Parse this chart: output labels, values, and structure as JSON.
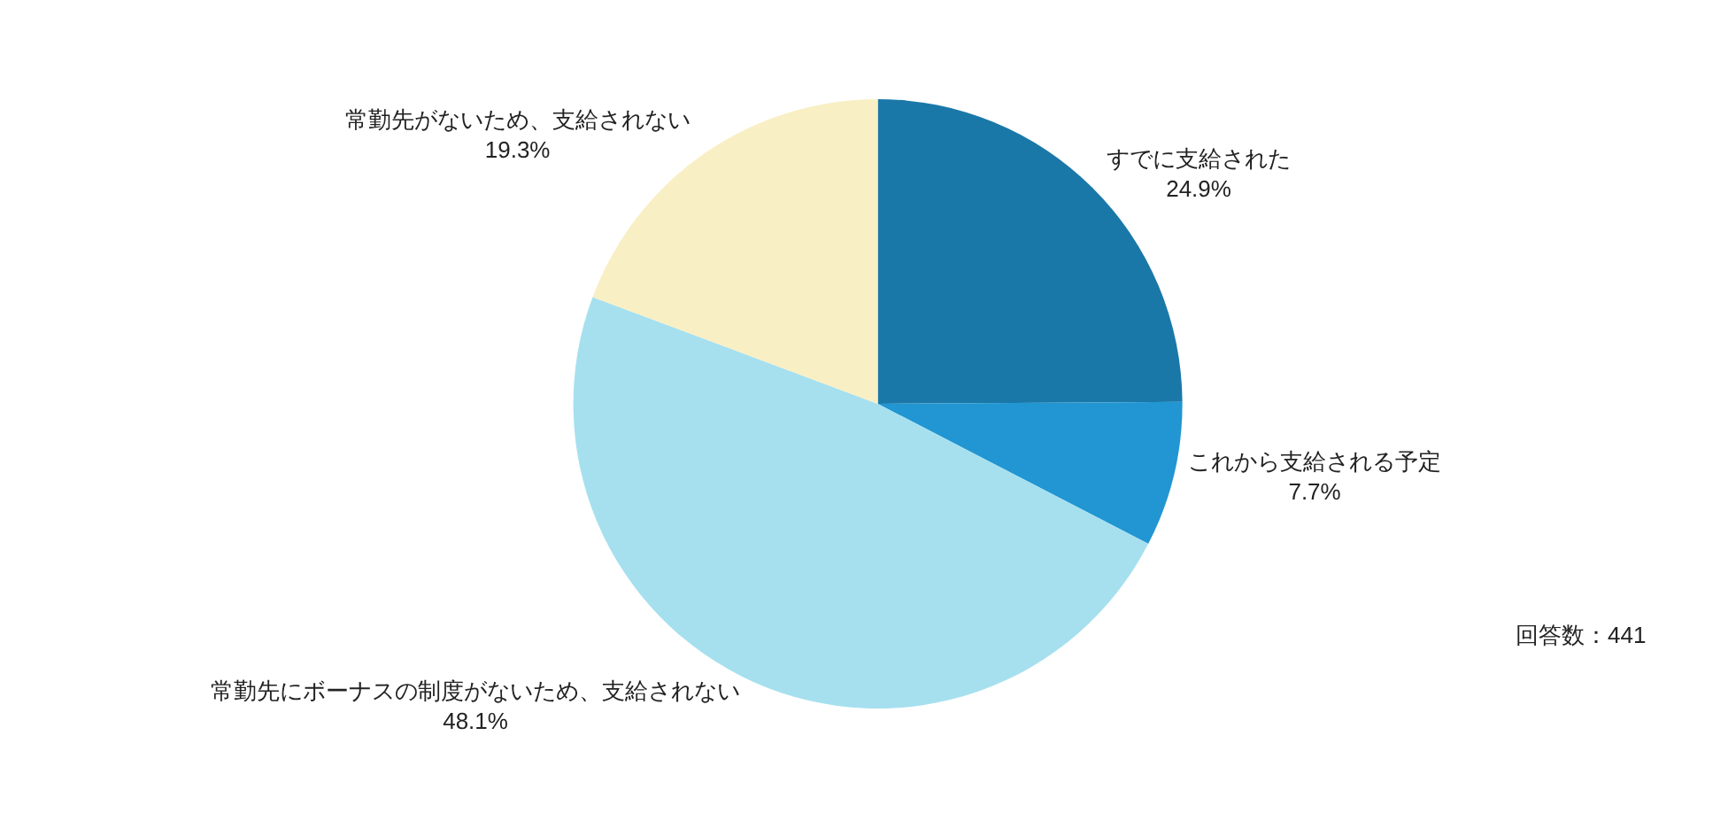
{
  "chart_data": {
    "type": "pie",
    "categories": [
      "すでに支給された",
      "これから支給される予定",
      "常勤先にボーナスの制度がないため、支給されない",
      "常勤先がないため、支給されない"
    ],
    "values": [
      24.9,
      7.7,
      48.1,
      19.3
    ],
    "value_labels": [
      "24.9%",
      "7.7%",
      "48.1%",
      "19.3%"
    ],
    "colors": [
      "#1a78a8",
      "#2196d2",
      "#a6e0ef",
      "#f9efc4"
    ],
    "annotations": [
      "回答数：441"
    ]
  }
}
